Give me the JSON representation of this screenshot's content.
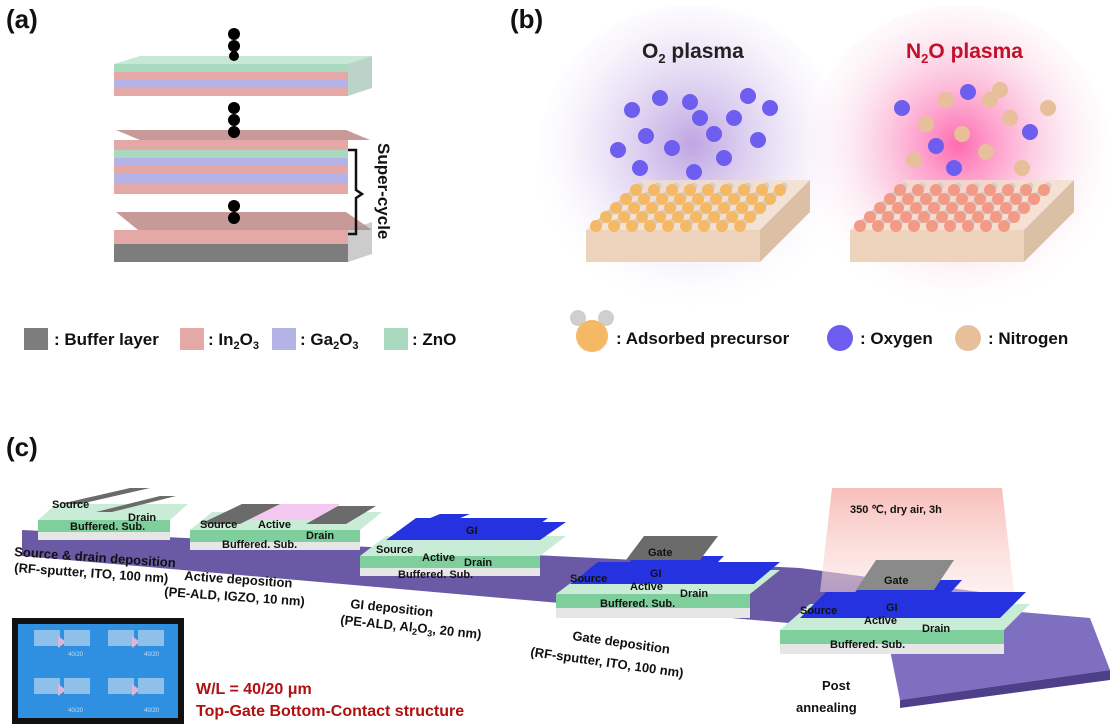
{
  "panels": {
    "a": {
      "letter": "(a)",
      "supercycle_label": "Super-cycle",
      "legend": [
        {
          "label": ": Buffer layer",
          "color": "#7d7d7d"
        },
        {
          "label": ": In2O3",
          "color": "#e4a9a6"
        },
        {
          "label": ": Ga2O3",
          "color": "#b3b3e6"
        },
        {
          "label": ": ZnO",
          "color": "#a9d9bf"
        }
      ],
      "legend_formula": {
        "in_main": ": In",
        "in_sub1": "2",
        "in_o": "O",
        "in_sub2": "3",
        "ga_main": ": Ga",
        "ga_sub1": "2",
        "ga_o": "O",
        "ga_sub2": "3"
      }
    },
    "b": {
      "letter": "(b)",
      "o2_title": {
        "main": "O",
        "sub": "2",
        "rest": " plasma"
      },
      "n2o_title": {
        "main": "N",
        "sub": "2",
        "rest": "O plasma"
      },
      "legend": [
        {
          "label": ": Adsorbed precursor",
          "color": "#f5b865"
        },
        {
          "label": ": Oxygen",
          "color": "#6e5ef0"
        },
        {
          "label": ": Nitrogen",
          "color": "#e7bf9a"
        }
      ]
    },
    "c": {
      "letter": "(c)",
      "steps": [
        {
          "title": "Source & drain deposition",
          "detail": "(RF-sputter, ITO, 100 nm)"
        },
        {
          "title": "Active deposition",
          "detail": "(PE-ALD, IGZO, 10 nm)"
        },
        {
          "title": "GI deposition",
          "detail_main": "(PE-ALD, Al",
          "sub1": "2",
          "o": "O",
          "sub2": "3",
          "rest": ", 20 nm)"
        },
        {
          "title": "Gate deposition",
          "detail": "(RF-sputter, ITO, 100 nm)"
        },
        {
          "title": "Post",
          "detail": "annealing"
        }
      ],
      "device_labels": {
        "source": "Source",
        "drain": "Drain",
        "active": "Active",
        "gi": "GI",
        "gate": "Gate",
        "substrate": "Buffered. Sub."
      },
      "anneal_condition": "350 ℃, dry air, 3h",
      "ratio": "W/L = 40/20 μm",
      "structure": "Top-Gate Bottom-Contact structure",
      "micrograph_labels": [
        "40/20",
        "40/20",
        "40/20",
        "40/20"
      ]
    }
  }
}
